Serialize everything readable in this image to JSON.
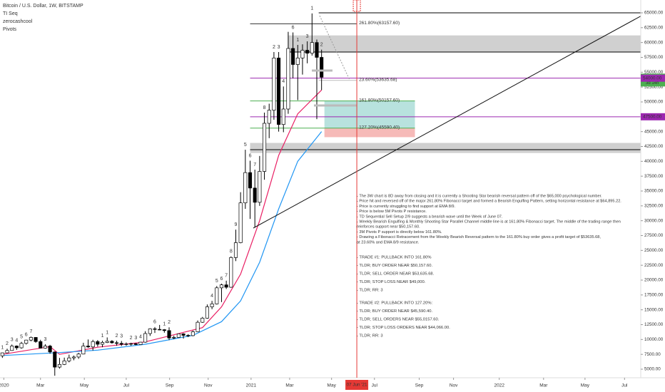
{
  "chart_data": {
    "type": "candlestick",
    "legend": [
      "Bitcoin / U.S. Dollar, 1W, BITSTAMP",
      "TI Seq",
      "zerocashcool",
      "Pivots"
    ],
    "x": [
      0,
      1,
      2,
      3,
      4,
      5,
      6,
      7,
      8,
      9,
      10,
      11,
      12,
      13,
      14,
      15,
      16,
      17,
      18,
      19,
      20,
      21,
      22,
      23,
      24,
      25,
      26,
      27,
      28,
      29,
      30,
      31,
      32,
      33,
      34,
      35,
      36,
      37,
      38,
      39,
      40,
      41,
      42,
      43,
      44,
      45,
      46,
      47,
      48,
      49,
      50,
      51,
      52,
      53,
      54,
      55,
      56,
      57,
      58,
      59,
      60,
      61,
      62,
      63,
      64,
      65,
      66,
      67
    ],
    "open": [
      7250,
      7750,
      8150,
      8900,
      8600,
      9350,
      9900,
      10350,
      9650,
      8550,
      8900,
      7900,
      5350,
      5800,
      6400,
      6900,
      7050,
      7550,
      8900,
      8750,
      9650,
      9200,
      9500,
      9700,
      9450,
      9350,
      9200,
      9250,
      9300,
      9150,
      9550,
      11000,
      11800,
      11700,
      11650,
      11500,
      10250,
      10350,
      10950,
      10700,
      10650,
      11300,
      12900,
      13600,
      15500,
      16000,
      18700,
      19200,
      18800,
      23800,
      26300,
      33000,
      38100,
      35500,
      33100,
      38300,
      46400,
      48600,
      57400,
      46200,
      48800,
      59000,
      56300,
      57400,
      58700,
      58200,
      60000,
      57500
    ],
    "high": [
      7800,
      8450,
      9150,
      9000,
      9600,
      9950,
      10500,
      10400,
      9950,
      9200,
      9100,
      8000,
      6900,
      6950,
      7450,
      7300,
      7750,
      9450,
      10000,
      9950,
      9900,
      9800,
      10350,
      9900,
      9800,
      9750,
      9500,
      9450,
      9400,
      9600,
      11400,
      11900,
      12100,
      12450,
      11750,
      12050,
      10650,
      11000,
      11050,
      10900,
      11500,
      13200,
      13800,
      15900,
      16500,
      19000,
      19400,
      19900,
      24000,
      28500,
      34800,
      41950,
      40100,
      38600,
      40900,
      48200,
      49700,
      58400,
      58400,
      52600,
      61800,
      61700,
      59600,
      59700,
      60200,
      64900,
      60500,
      58800
    ],
    "low": [
      6900,
      7700,
      8100,
      8250,
      8450,
      9150,
      9700,
      9450,
      8500,
      8450,
      7600,
      3900,
      5100,
      5700,
      6150,
      6500,
      6750,
      7500,
      8600,
      8150,
      8800,
      8700,
      9400,
      9300,
      8950,
      8900,
      8950,
      8950,
      9050,
      9150,
      9450,
      10600,
      11100,
      11550,
      11150,
      9900,
      10050,
      10300,
      10150,
      10400,
      10550,
      11250,
      12800,
      13500,
      15100,
      15900,
      16300,
      18500,
      18700,
      23200,
      26200,
      32000,
      30300,
      28900,
      32500,
      36900,
      43900,
      47000,
      45000,
      44900,
      48000,
      54000,
      50300,
      54600,
      56500,
      57800,
      47100,
      52000
    ],
    "close": [
      7750,
      8150,
      8900,
      8600,
      9350,
      9900,
      10350,
      9650,
      8550,
      8900,
      7900,
      5350,
      5800,
      6400,
      6900,
      7050,
      7550,
      8900,
      8750,
      9650,
      9200,
      9500,
      9700,
      9450,
      9350,
      9200,
      9250,
      9300,
      9150,
      9550,
      11000,
      11800,
      11700,
      11650,
      11500,
      10250,
      10350,
      10950,
      10700,
      10650,
      11300,
      12900,
      13600,
      15500,
      16000,
      18700,
      19200,
      18800,
      23800,
      26300,
      33000,
      38100,
      35500,
      33100,
      38300,
      46400,
      48600,
      57400,
      46200,
      48800,
      59000,
      56300,
      57400,
      58700,
      58200,
      60000,
      57500,
      54160.81
    ],
    "up_color": "#ffffff",
    "down_color": "#000000",
    "xlim": [
      -0.5,
      134
    ],
    "ylim": [
      3560,
      67160
    ],
    "xticks": [
      {
        "value": 0.3,
        "label": "2020"
      },
      {
        "value": 8,
        "label": "Mar"
      },
      {
        "value": 17.2,
        "label": "May"
      },
      {
        "value": 26,
        "label": "Jul"
      },
      {
        "value": 35.1,
        "label": "Sep"
      },
      {
        "value": 43.2,
        "label": "Nov"
      },
      {
        "value": 52.2,
        "label": "2021"
      },
      {
        "value": 60.3,
        "label": "Mar"
      },
      {
        "value": 69.1,
        "label": "May"
      },
      {
        "value": 78.1,
        "label": "Jul"
      },
      {
        "value": 87.5,
        "label": "Sep"
      },
      {
        "value": 94.7,
        "label": "Nov"
      },
      {
        "value": 104.3,
        "label": "2022"
      },
      {
        "value": 113.6,
        "label": "Mar"
      },
      {
        "value": 122.3,
        "label": "May"
      },
      {
        "value": 130.6,
        "label": "Jul"
      }
    ],
    "highlight_date": {
      "value": 74.4,
      "label": "07 Jun '21",
      "color": "#e53935"
    },
    "yticks": [
      {
        "value": 5000,
        "label": "5000.00"
      },
      {
        "value": 7500,
        "label": "7500.00"
      },
      {
        "value": 10000,
        "label": "10000.00"
      },
      {
        "value": 12500,
        "label": "12500.00"
      },
      {
        "value": 15000,
        "label": "15000.00"
      },
      {
        "value": 17500,
        "label": "17500.00"
      },
      {
        "value": 20000,
        "label": "20000.00"
      },
      {
        "value": 22500,
        "label": "22500.00"
      },
      {
        "value": 25000,
        "label": "25000.00"
      },
      {
        "value": 27500,
        "label": "27500.00"
      },
      {
        "value": 30000,
        "label": "30000.00"
      },
      {
        "value": 32500,
        "label": "32500.00"
      },
      {
        "value": 35000,
        "label": "35000.00"
      },
      {
        "value": 37500,
        "label": "37500.00"
      },
      {
        "value": 40000,
        "label": "40000.00"
      },
      {
        "value": 42500,
        "label": "42500.00"
      },
      {
        "value": 45000,
        "label": "45000.00"
      },
      {
        "value": 47500,
        "label": "47500.00"
      },
      {
        "value": 50000,
        "label": "50000.00"
      },
      {
        "value": 52500,
        "label": "52500.00"
      },
      {
        "value": 55000,
        "label": "55000.00"
      },
      {
        "value": 57500,
        "label": "57500.00"
      },
      {
        "value": 60000,
        "label": "60000.00"
      },
      {
        "value": 62500,
        "label": "62500.00"
      },
      {
        "value": 65000,
        "label": "65000.00"
      }
    ],
    "price_tags": [
      {
        "value": 54160.81,
        "sub": "3d 14h",
        "color": "#4caf50"
      },
      {
        "value": {
          "value": 54000,
          "label": "54000.00"
        },
        "color": "#9c27b0"
      },
      {
        "value": {
          "value": 47500,
          "label": "47500.00"
        },
        "color": "#9c27b0"
      }
    ],
    "zones": [
      {
        "low": 58400,
        "high": 61200,
        "start": 60,
        "color": "#444444"
      },
      {
        "low": 41400,
        "high": 43100,
        "start": 52,
        "color": "#444444"
      }
    ],
    "levels": [
      {
        "value": 65000,
        "start": 66.4,
        "color": "#000000"
      },
      {
        "value": 63157.6,
        "start": 52,
        "end": 74.4,
        "color": "#333333",
        "label": "261.80%(63157.60)"
      },
      {
        "value": 58400,
        "start": 60,
        "color": "#000000"
      },
      {
        "value": 54000,
        "start": 52,
        "color": "#9c27b0"
      },
      {
        "value": 53635.68,
        "start": 66.4,
        "end": 74.4,
        "color": "#bbbbbb",
        "label": "23.60%(53635.68)"
      },
      {
        "value": 50157.6,
        "start": 52,
        "end": 86.6,
        "color": "#4caf50",
        "label": "161.80%(50157.60)"
      },
      {
        "value": 47500,
        "start": 52,
        "color": "#9c27b0"
      },
      {
        "value": 45590.4,
        "start": 52,
        "end": 86.6,
        "color": "#4caf50",
        "label": "127.20%(45590.40)"
      },
      {
        "value": 41960,
        "start": 52,
        "color": "#000000"
      }
    ],
    "boxes": [
      {
        "low": 45590.4,
        "high": 50157.6,
        "start": 67.6,
        "end": 86.6,
        "color": "rgba(0,150,136,0.28)"
      },
      {
        "low": 44066,
        "high": 45590.4,
        "start": 67.6,
        "end": 86.6,
        "color": "rgba(229,57,53,0.35)"
      }
    ],
    "ema_lines": [
      {
        "color": "#e91e63",
        "x": [
          0,
          10,
          12,
          20,
          30,
          36,
          42,
          46,
          50,
          54,
          58,
          62,
          67
        ],
        "values": [
          7500,
          8800,
          7500,
          8700,
          9600,
          10800,
          12000,
          15500,
          21000,
          30000,
          41000,
          48000,
          52000
        ]
      },
      {
        "color": "#2196f3",
        "x": [
          0,
          12,
          20,
          30,
          40,
          46,
          50,
          54,
          58,
          62,
          67
        ],
        "values": [
          7300,
          7800,
          8200,
          9200,
          10700,
          13000,
          16500,
          23000,
          32000,
          40000,
          45000
        ]
      }
    ],
    "td_counts": [
      {
        "week": 0,
        "label": "1",
        "color": "#4caf50"
      },
      {
        "week": 1,
        "label": "2",
        "color": "#4caf50"
      },
      {
        "week": 2,
        "label": "3",
        "color": "#4caf50"
      },
      {
        "week": 3,
        "label": "4",
        "color": "#4caf50"
      },
      {
        "week": 4,
        "label": "5",
        "color": "#4caf50"
      },
      {
        "week": 5,
        "label": "6",
        "color": "#4caf50"
      },
      {
        "week": 6,
        "label": "7",
        "color": "#4caf50"
      },
      {
        "week": 9,
        "label": "3",
        "color": "#e53935"
      },
      {
        "week": 21,
        "label": "1",
        "color": "#4caf50"
      },
      {
        "week": 22,
        "label": "1",
        "color": "#e53935"
      },
      {
        "week": 24,
        "label": "2",
        "color": "#e53935"
      },
      {
        "week": 25,
        "label": "3",
        "color": "#e53935"
      },
      {
        "week": 27,
        "label": "2",
        "color": "#4caf50"
      },
      {
        "week": 28,
        "label": "3",
        "color": "#4caf50"
      },
      {
        "week": 29,
        "label": "4",
        "color": "#4caf50"
      },
      {
        "week": 32,
        "label": "6",
        "color": "#4caf50"
      },
      {
        "week": 34,
        "label": "1",
        "color": "#e53935"
      },
      {
        "week": 35,
        "label": "2",
        "color": "#e53935"
      },
      {
        "week": 44,
        "label": "4",
        "color": "#4caf50"
      },
      {
        "week": 45,
        "label": "5",
        "color": "#4caf50"
      },
      {
        "week": 46,
        "label": "6",
        "color": "#4caf50"
      },
      {
        "week": 47,
        "label": "7",
        "color": "#4caf50"
      },
      {
        "week": 48,
        "label": "8",
        "color": "#4caf50"
      },
      {
        "week": 49,
        "label": "9",
        "color": "#4caf50"
      },
      {
        "week": 51,
        "label": "5",
        "color": "#4caf50"
      },
      {
        "week": 52,
        "label": "6",
        "color": "#4caf50"
      },
      {
        "week": 53,
        "label": "7",
        "color": "#4caf50"
      },
      {
        "week": 55,
        "label": "8",
        "color": "#4caf50"
      },
      {
        "week": 57,
        "label": "2",
        "color": "#4caf50"
      },
      {
        "week": 58,
        "label": "3",
        "color": "#4caf50"
      },
      {
        "week": 59,
        "label": "4",
        "color": "#4caf50"
      },
      {
        "week": 61,
        "label": "6",
        "color": "#4caf50"
      },
      {
        "week": 62,
        "label": "1",
        "color": "#e53935"
      },
      {
        "week": 64,
        "label": "3",
        "color": "#4caf50"
      },
      {
        "week": 65,
        "label": "1",
        "color": "#e53935"
      },
      {
        "week": 67,
        "label": "2",
        "color": "#e53935"
      }
    ],
    "notes": [
      "- The 3W chart is 8D away from closing and it is currently a Shooting Star bearish reversal pattern off of the $65,000 psychological number.",
      "- Price hit and reversed off of the major 261.80% Fibonacci target and formed a Bearish Engulfing Pattern, setting horizontal resistance at $64,895.22.",
      "- Price is currently struggling to find support at EMA 8/9.",
      "- Price is below 5M Pivots P resistance.",
      "- TD Sequential Sell Setup 2/9 suggests a bearish wave until the Week of June 07.",
      "- Weekly Bearish Engulfing & Monthly Shooting Star Parallel Channel middle line is at 161.80% Fibonacci target. The middle of the trading range then",
      "  reinforces support near $50,157.60.",
      "- 3M Pivots P support is directly below 161.80%.",
      "- Drawing a Fibonacci Retracement from the Weekly Bearish Reversal pattern to the 161.80% buy order gives a profit target of $53635.68,",
      "  at 23.60% and EMA 8/9 resistance."
    ],
    "trades": [
      [
        {
          "text": "- TRADE #1: PULLBACK INTO 161.80%",
          "color": "#333333"
        },
        {
          "text": "- TLDR; BUY ORDER NEAR $50,157.60.",
          "color": "#2196f3"
        },
        {
          "text": "- TLDR; SELL ORDER NEAR $53,635.68.",
          "color": "#4caf50"
        },
        {
          "text": "- TLDR; STOP LOSS NEAR $49,000.",
          "color": "#e53935"
        },
        {
          "text": "- TLDR; RR: 3",
          "color": "#000000"
        }
      ],
      [
        {
          "text": "- TRADE #2: PULLBACK INTO 127.20%:",
          "color": "#333333"
        },
        {
          "text": "- TLDR; BUY ORDER NEAR $45,590.40.",
          "color": "#2196f3"
        },
        {
          "text": "- TLDR; SELL ORDERS NEAR $55,0157.60.",
          "color": "#4caf50"
        },
        {
          "text": "- TLDR; STOP LOSS ORDERS NEAR $44,066.00.",
          "color": "#e53935"
        },
        {
          "text": "- TLDR; RR: 3",
          "color": "#000000"
        }
      ]
    ]
  }
}
